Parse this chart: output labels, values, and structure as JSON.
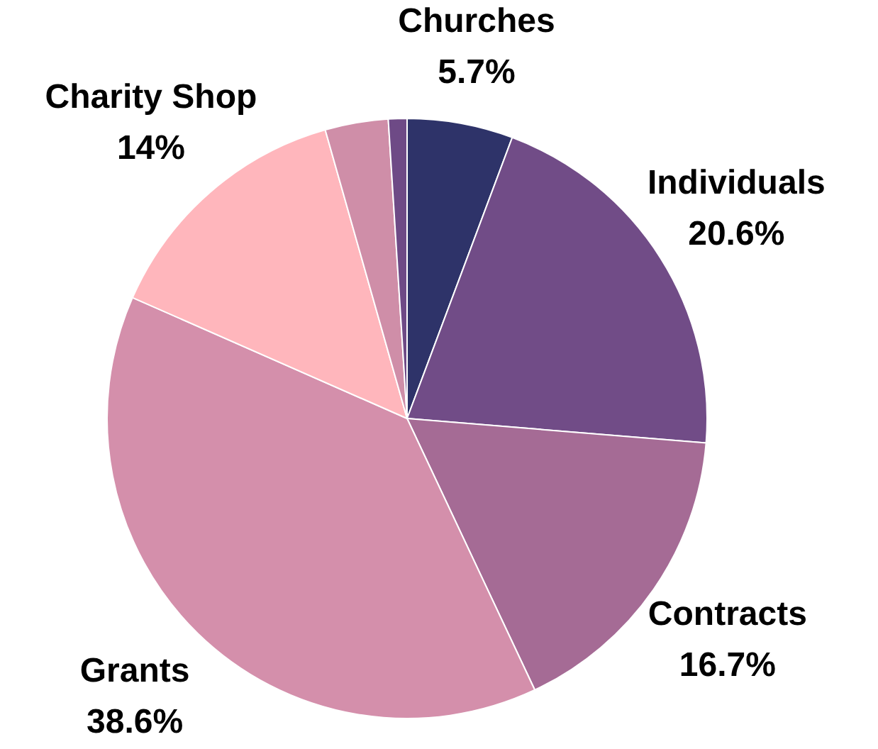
{
  "chart_data": {
    "type": "pie",
    "categories": [
      "Churches",
      "Individuals",
      "Contracts",
      "Grants",
      "Charity Shop",
      null,
      null
    ],
    "values": [
      5.7,
      20.6,
      16.7,
      38.6,
      14,
      3.4,
      1.0
    ],
    "value_labels": [
      "5.7%",
      "20.6%",
      "16.7%",
      "38.6%",
      "14%",
      null,
      null
    ],
    "colors": [
      "#2e3369",
      "#714c87",
      "#a56b95",
      "#d48fab",
      "#ffb6bc",
      "#cf8ea8",
      "#6e4a86"
    ],
    "legend": false
  }
}
